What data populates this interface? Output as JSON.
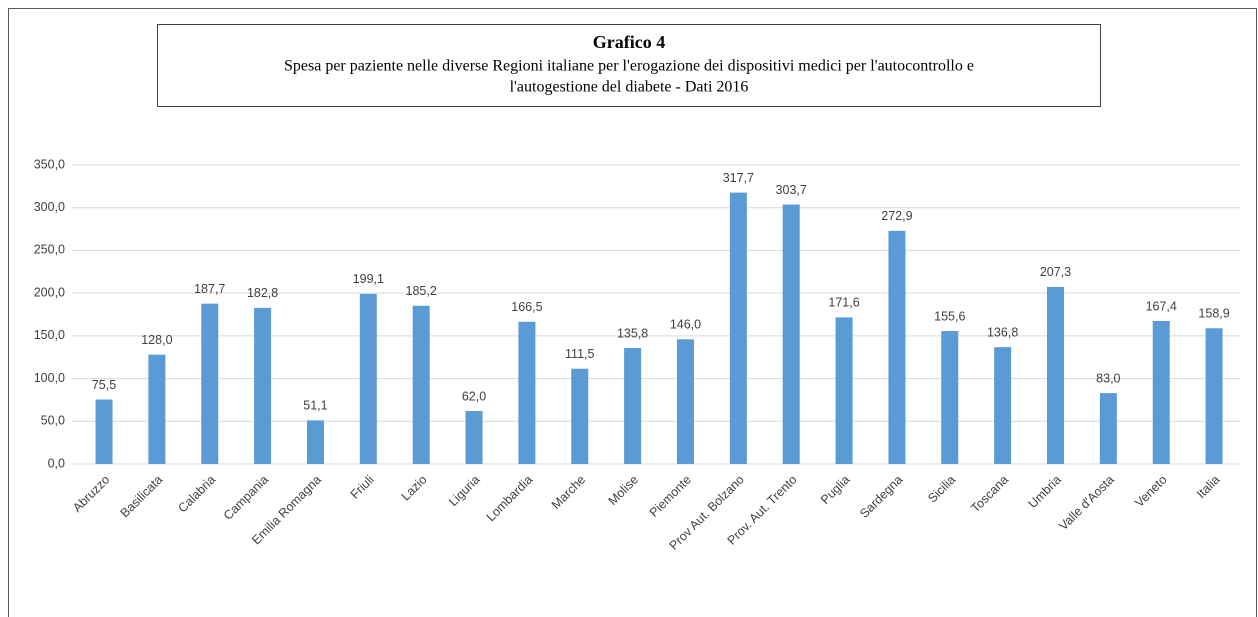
{
  "chart_data": {
    "type": "bar",
    "title": "Grafico 4",
    "subtitle": [
      "Spesa per paziente nelle diverse Regioni italiane per l'erogazione dei dispositivi medici per l'autocontrollo e",
      "l'autogestione del diabete  - Dati 2016"
    ],
    "categories": [
      "Abruzzo",
      "Basilicata",
      "Calabria",
      "Campania",
      "Emilia Romagna",
      "Friuli",
      "Lazio",
      "Liguria",
      "Lombardia",
      "Marche",
      "Molise",
      "Piemonte",
      "Prov Aut. Bolzano",
      "Prov. Aut. Trento",
      "Puglia",
      "Sardegna",
      "Sicilia",
      "Toscana",
      "Umbria",
      "Valle d'Aosta",
      "Veneto",
      "Italia"
    ],
    "values": [
      75.5,
      128.0,
      187.7,
      182.8,
      51.1,
      199.1,
      185.2,
      62.0,
      166.5,
      111.5,
      135.8,
      146.0,
      317.7,
      303.7,
      171.6,
      272.9,
      155.6,
      136.8,
      207.3,
      83.0,
      167.4,
      158.9
    ],
    "value_labels": [
      "75,5",
      "128,0",
      "187,7",
      "182,8",
      "51,1",
      "199,1",
      "185,2",
      "62,0",
      "166,5",
      "111,5",
      "135,8",
      "146,0",
      "317,7",
      "303,7",
      "171,6",
      "272,9",
      "155,6",
      "136,8",
      "207,3",
      "83,0",
      "167,4",
      "158,9"
    ],
    "color": "#5b9bd5",
    "ylim": [
      0,
      350
    ],
    "yticks": [
      {
        "value": 0,
        "label": "0,0"
      },
      {
        "value": 50,
        "label": "50,0"
      },
      {
        "value": 100,
        "label": "100,0"
      },
      {
        "value": 150,
        "label": "150,0"
      },
      {
        "value": 200,
        "label": "200,0"
      },
      {
        "value": 250,
        "label": "250,0"
      },
      {
        "value": 300,
        "label": "300,0"
      },
      {
        "value": 350,
        "label": "350,0"
      }
    ],
    "grid": true
  }
}
